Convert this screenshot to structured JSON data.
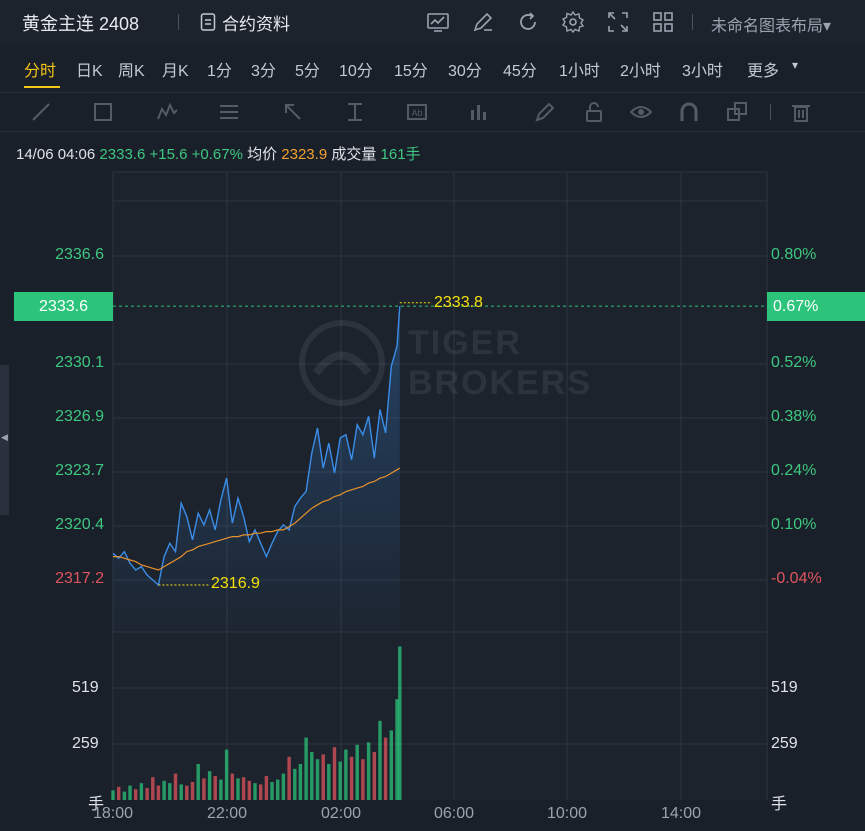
{
  "header": {
    "title": "黄金主连 2408",
    "contract_info_label": "合约资料",
    "layout_label": "未命名图表布局",
    "icons": [
      "indicator-icon",
      "draw-icon",
      "refresh-icon",
      "settings-icon",
      "fullscreen-icon",
      "grid-layout-icon"
    ]
  },
  "timeframes": [
    "分时",
    "日K",
    "周K",
    "月K",
    "1分",
    "3分",
    "5分",
    "10分",
    "15分",
    "30分",
    "45分",
    "1小时",
    "2小时",
    "3小时",
    "更多"
  ],
  "active_timeframe": "分时",
  "quote": {
    "datetime": "14/06 04:06",
    "price": "2333.6",
    "change": "+15.6",
    "change_pct": "+0.67%",
    "avg_label": "均价",
    "avg_value": "2323.9",
    "volume_label": "成交量",
    "volume_value": "161手"
  },
  "watermark": {
    "line1": "TIGER",
    "line2": "BROKERS"
  },
  "colors": {
    "up": "#2bc47a",
    "down": "#e0545e",
    "price_line": "#3b8de8",
    "avg_line": "#e8922c",
    "annotation": "#f5e10a",
    "active": "#f5c518"
  },
  "chart_data": {
    "type": "line",
    "x_ticks": [
      "18:00",
      "22:00",
      "02:00",
      "06:00",
      "10:00",
      "14:00"
    ],
    "y_ticks": [
      "2336.6",
      "2330.1",
      "2326.9",
      "2323.7",
      "2320.4",
      "2317.2"
    ],
    "y_ticks_pct": [
      "0.80%",
      "0.52%",
      "0.38%",
      "0.24%",
      "0.10%",
      "-0.04%"
    ],
    "current_price_label": "2333.6",
    "current_pct_label": "0.67%",
    "ylim": [
      2315.4,
      2337.6
    ],
    "high": 2333.8,
    "high_label": "2333.8",
    "low": 2316.9,
    "low_label": "2316.9",
    "current": 2333.6,
    "volume_ticks": [
      "519",
      "259"
    ],
    "volume_unit": "手",
    "volume_ylim": [
      0,
      700
    ],
    "x_hours": [
      0,
      0.2,
      0.4,
      0.6,
      0.8,
      1.0,
      1.2,
      1.4,
      1.6,
      1.8,
      2.0,
      2.2,
      2.4,
      2.6,
      2.8,
      3.0,
      3.2,
      3.4,
      3.6,
      3.8,
      4.0,
      4.2,
      4.4,
      4.6,
      4.8,
      5.0,
      5.2,
      5.4,
      5.6,
      5.8,
      6.0,
      6.2,
      6.4,
      6.6,
      6.8,
      7.0,
      7.2,
      7.4,
      7.6,
      7.8,
      8.0,
      8.2,
      8.4,
      8.6,
      8.8,
      9.0,
      9.2,
      9.4,
      9.6,
      9.8,
      10.0,
      10.1
    ],
    "series": [
      {
        "values": [
          2318.8,
          2318.5,
          2318.9,
          2318.2,
          2317.8,
          2318.0,
          2317.5,
          2317.2,
          2316.9,
          2318.6,
          2319.4,
          2318.9,
          2321.8,
          2321.0,
          2319.6,
          2321.2,
          2320.5,
          2321.4,
          2320.2,
          2322.0,
          2323.3,
          2320.6,
          2322.1,
          2321.0,
          2319.5,
          2320.2,
          2319.4,
          2318.6,
          2319.4,
          2320.1,
          2320.5,
          2320.2,
          2321.6,
          2322.1,
          2322.5,
          2324.8,
          2326.3,
          2323.9,
          2325.4,
          2323.6,
          2325.7,
          2325.9,
          2324.4,
          2326.5,
          2325.9,
          2327.0,
          2324.5,
          2327.4,
          2326.0,
          2330.0,
          2331.2,
          2333.6
        ]
      },
      {
        "values": [
          2318.6,
          2318.6,
          2318.5,
          2318.4,
          2318.3,
          2318.1,
          2318.0,
          2317.9,
          2317.8,
          2318.0,
          2318.2,
          2318.4,
          2318.6,
          2318.9,
          2319.0,
          2319.2,
          2319.3,
          2319.4,
          2319.5,
          2319.6,
          2319.7,
          2319.8,
          2319.8,
          2319.9,
          2319.9,
          2320.0,
          2320.0,
          2320.1,
          2320.1,
          2320.2,
          2320.2,
          2320.4,
          2320.6,
          2320.9,
          2321.2,
          2321.5,
          2321.7,
          2321.9,
          2322.0,
          2322.2,
          2322.3,
          2322.5,
          2322.6,
          2322.7,
          2322.8,
          2323.0,
          2323.1,
          2323.3,
          2323.4,
          2323.6,
          2323.8,
          2323.9
        ]
      }
    ],
    "volume": [
      40,
      55,
      35,
      60,
      45,
      70,
      50,
      95,
      60,
      80,
      70,
      110,
      65,
      60,
      75,
      150,
      90,
      120,
      100,
      85,
      210,
      110,
      90,
      95,
      80,
      70,
      65,
      100,
      75,
      85,
      110,
      180,
      130,
      150,
      260,
      200,
      170,
      190,
      150,
      220,
      160,
      210,
      180,
      230,
      170,
      240,
      200,
      330,
      260,
      290,
      420,
      640
    ],
    "volume_up": [
      true,
      false,
      true,
      true,
      false,
      true,
      false,
      false,
      false,
      true,
      true,
      false,
      true,
      false,
      false,
      true,
      false,
      true,
      false,
      true,
      true,
      false,
      true,
      false,
      false,
      true,
      false,
      false,
      true,
      true,
      true,
      false,
      true,
      true,
      true,
      true,
      true,
      false,
      true,
      false,
      true,
      true,
      false,
      true,
      false,
      true,
      false,
      true,
      false,
      true,
      true,
      true
    ]
  }
}
